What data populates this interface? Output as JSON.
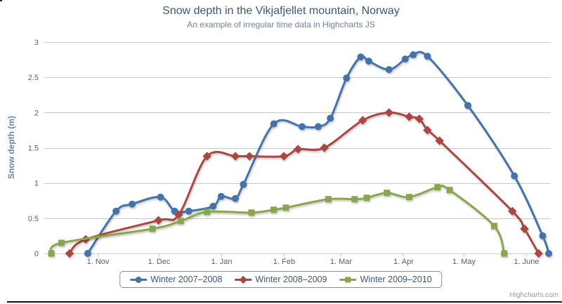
{
  "chart": {
    "title": "Snow depth in the Vikjafjellet mountain, Norway",
    "subtitle": "An example of irregular time data in Highcharts JS",
    "credits": "Highcharts.com"
  },
  "chart_data": {
    "type": "spline",
    "title": "Snow depth in the Vikjafjellet mountain, Norway",
    "subtitle": "An example of irregular time data in Highcharts JS",
    "xlabel": "",
    "ylabel": "Snow depth (m)",
    "ylim": [
      0,
      3
    ],
    "y_ticks": [
      0,
      0.5,
      1,
      1.5,
      2,
      2.5,
      3
    ],
    "y_tick_labels": [
      "0",
      "0.5",
      "1",
      "1.5",
      "2",
      "2.5",
      "3"
    ],
    "x_ticks": [
      {
        "date": "1 Nov",
        "label": "1. Nov"
      },
      {
        "date": "1 Dec",
        "label": "1. Dec"
      },
      {
        "date": "1 Jan",
        "label": "1. Jan"
      },
      {
        "date": "1 Feb",
        "label": "1. Feb"
      },
      {
        "date": "1 Mar",
        "label": "1. Mar"
      },
      {
        "date": "1 Apr",
        "label": "1. Apr"
      },
      {
        "date": "1 May",
        "label": "1. May"
      },
      {
        "date": "1 Jun",
        "label": "1. June"
      }
    ],
    "grid": true,
    "legend_position": "bottom",
    "grid_color": "#C8C8C8",
    "axis_line_color": "#C0D0E0",
    "axis_label_color": "#606060",
    "series": [
      {
        "name": "Winter 2007–2008",
        "color": "#4572A7",
        "marker": "circle",
        "points": [
          [
            "27 Oct",
            0
          ],
          [
            "10 Nov",
            0.6
          ],
          [
            "18 Nov",
            0.7
          ],
          [
            "2 Dec",
            0.8
          ],
          [
            "9 Dec",
            0.6
          ],
          [
            "16 Dec",
            0.6
          ],
          [
            "28 Dec",
            0.67
          ],
          [
            "1 Jan",
            0.81
          ],
          [
            "8 Jan",
            0.78
          ],
          [
            "12 Jan",
            0.98
          ],
          [
            "27 Jan",
            1.84
          ],
          [
            "10 Feb",
            1.8
          ],
          [
            "18 Feb",
            1.8
          ],
          [
            "24 Feb",
            1.92
          ],
          [
            "4 Mar",
            2.49
          ],
          [
            "11 Mar",
            2.79
          ],
          [
            "15 Mar",
            2.73
          ],
          [
            "25 Mar",
            2.61
          ],
          [
            "2 Apr",
            2.76
          ],
          [
            "6 Apr",
            2.82
          ],
          [
            "13 Apr",
            2.8
          ],
          [
            "3 May",
            2.1
          ],
          [
            "26 May",
            1.1
          ],
          [
            "9 Jun",
            0.25
          ],
          [
            "12 Jun",
            0
          ]
        ]
      },
      {
        "name": "Winter 2008–2009",
        "color": "#AA4643",
        "marker": "diamond",
        "points": [
          [
            "18 Oct",
            0
          ],
          [
            "26 Oct",
            0.2
          ],
          [
            "1 Dec",
            0.47
          ],
          [
            "11 Dec",
            0.55
          ],
          [
            "25 Dec",
            1.38
          ],
          [
            "8 Jan",
            1.38
          ],
          [
            "15 Jan",
            1.38
          ],
          [
            "1 Feb",
            1.38
          ],
          [
            "8 Feb",
            1.48
          ],
          [
            "21 Feb",
            1.5
          ],
          [
            "12 Mar",
            1.89
          ],
          [
            "25 Mar",
            2.0
          ],
          [
            "4 Apr",
            1.94
          ],
          [
            "9 Apr",
            1.91
          ],
          [
            "13 Apr",
            1.75
          ],
          [
            "19 Apr",
            1.6
          ],
          [
            "25 May",
            0.6
          ],
          [
            "31 May",
            0.35
          ],
          [
            "7 Jun",
            0
          ]
        ]
      },
      {
        "name": "Winter 2009–2010",
        "color": "#89A54E",
        "marker": "square",
        "points": [
          [
            "9 Oct",
            0
          ],
          [
            "14 Oct",
            0.15
          ],
          [
            "28 Nov",
            0.35
          ],
          [
            "12 Dec",
            0.46
          ],
          [
            "25 Dec",
            0.59
          ],
          [
            "16 Jan",
            0.58
          ],
          [
            "27 Jan",
            0.62
          ],
          [
            "2 Feb",
            0.65
          ],
          [
            "23 Feb",
            0.77
          ],
          [
            "8 Mar",
            0.77
          ],
          [
            "14 Mar",
            0.79
          ],
          [
            "24 Mar",
            0.86
          ],
          [
            "4 Apr",
            0.8
          ],
          [
            "18 Apr",
            0.94
          ],
          [
            "24 Apr",
            0.9
          ],
          [
            "16 May",
            0.39
          ],
          [
            "21 May",
            0
          ]
        ]
      }
    ]
  }
}
